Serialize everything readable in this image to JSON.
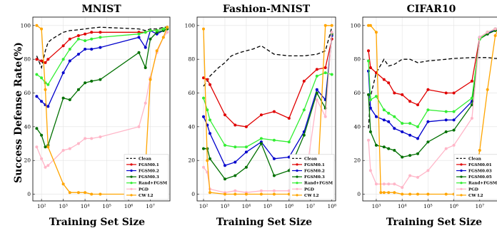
{
  "figure": {
    "shared_ylabel": "Success Defense Rate(%)",
    "shared_xlabel": "Training Set Size"
  },
  "chart_data": [
    {
      "type": "line",
      "title": "MNIST",
      "xlabel": "Training Set Size",
      "ylabel": "Success Defense Rate(%)",
      "xscale": "log",
      "xlim": [
        40,
        80000000
      ],
      "ylim": [
        -4,
        105
      ],
      "x_ticks": [
        100,
        1000,
        10000,
        100000,
        1000000,
        10000000
      ],
      "x_tick_labels": [
        "10²",
        "10³",
        "10⁴",
        "10⁵",
        "10⁶",
        "10⁷"
      ],
      "y_ticks": [
        0,
        20,
        40,
        60,
        80,
        100
      ],
      "grid": true,
      "legend_position": "bottom-right",
      "series": [
        {
          "name": "Clean",
          "color": "#000000",
          "dash": "5,3",
          "marker": "none",
          "x": [
            60,
            100,
            150,
            200,
            300,
            1000,
            2000,
            5000,
            10000,
            20000,
            50000,
            3000000,
            6000000,
            10000000,
            20000000,
            30000000,
            40000000,
            60000000
          ],
          "y": [
            82,
            75,
            85,
            90,
            92,
            96,
            97,
            97.5,
            98,
            98.5,
            99,
            98,
            97,
            98,
            98,
            98.5,
            99,
            99
          ]
        },
        {
          "name": "FGSM0.1",
          "color": "#e00000",
          "dash": "",
          "marker": "circle",
          "x": [
            60,
            100,
            150,
            200,
            1000,
            2000,
            5000,
            10000,
            20000,
            50000,
            3000000,
            6000000,
            10000000,
            20000000,
            40000000,
            60000000
          ],
          "y": [
            80,
            79,
            78,
            80,
            88,
            92,
            94,
            95,
            96,
            96,
            96,
            96,
            97,
            97,
            98,
            99
          ]
        },
        {
          "name": "FGSM0.2",
          "color": "#0000cc",
          "dash": "",
          "marker": "circle",
          "x": [
            60,
            100,
            150,
            200,
            1000,
            2000,
            5000,
            10000,
            20000,
            50000,
            3000000,
            6000000,
            10000000,
            20000000,
            40000000,
            60000000
          ],
          "y": [
            58,
            55,
            53,
            52,
            72,
            79,
            83,
            86,
            86,
            87,
            93,
            87,
            97,
            95,
            97,
            98
          ]
        },
        {
          "name": "FGSM0.3",
          "color": "#007000",
          "dash": "",
          "marker": "circle",
          "x": [
            60,
            100,
            150,
            200,
            1000,
            2000,
            5000,
            10000,
            20000,
            50000,
            3000000,
            6000000,
            10000000,
            20000000,
            40000000,
            60000000
          ],
          "y": [
            39,
            35,
            28,
            29,
            57,
            56,
            62,
            66,
            67,
            68,
            84,
            75,
            92,
            96,
            97,
            98
          ]
        },
        {
          "name": "Rand+FGSM",
          "color": "#33ee33",
          "dash": "",
          "marker": "circle",
          "x": [
            60,
            100,
            150,
            200,
            1000,
            2000,
            5000,
            10000,
            20000,
            50000,
            3000000,
            6000000,
            10000000,
            20000000,
            40000000,
            60000000
          ],
          "y": [
            71,
            69,
            66,
            65,
            80,
            86,
            92,
            91,
            92,
            93,
            95,
            96,
            97,
            97,
            98,
            99
          ]
        },
        {
          "name": "PGD",
          "color": "#ffb6c8",
          "dash": "",
          "marker": "circle",
          "x": [
            60,
            100,
            150,
            200,
            1000,
            2000,
            5000,
            10000,
            20000,
            50000,
            3000000,
            6000000,
            10000000,
            20000000,
            40000000,
            60000000
          ],
          "y": [
            28,
            21,
            16,
            17,
            26,
            27,
            30,
            33,
            33,
            34,
            40,
            54,
            69,
            84,
            93,
            96
          ]
        },
        {
          "name": "CW L2",
          "color": "#ffa500",
          "dash": "",
          "marker": "circle",
          "x": [
            60,
            100,
            150,
            200,
            1000,
            2000,
            5000,
            10000,
            20000,
            50000,
            3000000,
            6000000,
            10000000,
            20000000,
            40000000,
            60000000
          ],
          "y": [
            100,
            98,
            62,
            28,
            6,
            1,
            1,
            1,
            0,
            0,
            0,
            16,
            68,
            85,
            93,
            99
          ]
        }
      ]
    },
    {
      "type": "line",
      "title": "Fashion-MNIST",
      "xlabel": "Training Set Size",
      "ylabel": "Success Defense Rate(%)",
      "xscale": "log",
      "xlim": [
        50,
        150000000
      ],
      "ylim": [
        -4,
        105
      ],
      "x_ticks": [
        100,
        1000,
        10000,
        100000,
        1000000,
        10000000,
        100000000
      ],
      "x_tick_labels": [
        "10²",
        "10³",
        "10⁴",
        "10⁵",
        "10⁶",
        "10⁷",
        "10⁸"
      ],
      "y_ticks": [
        0,
        20,
        40,
        60,
        80,
        100
      ],
      "grid": true,
      "legend_position": "bottom-right",
      "series": [
        {
          "name": "Clean",
          "color": "#000000",
          "dash": "5,3",
          "marker": "none",
          "x": [
            100,
            150,
            200,
            500,
            1000,
            2000,
            5000,
            10000,
            20000,
            50000,
            200000,
            1000000,
            5000000,
            20000000,
            50000000,
            100000000
          ],
          "y": [
            64,
            67,
            70,
            75,
            78,
            82,
            84,
            85,
            86,
            88,
            83,
            82,
            82,
            83,
            85,
            99
          ]
        },
        {
          "name": "FGSM0.1",
          "color": "#e00000",
          "dash": "",
          "marker": "circle",
          "x": [
            100,
            150,
            200,
            1000,
            3000,
            10000,
            50000,
            200000,
            1000000,
            5000000,
            20000000,
            50000000,
            100000000
          ],
          "y": [
            69,
            68,
            65,
            47,
            41,
            40,
            47,
            49,
            45,
            67,
            74,
            75,
            92
          ]
        },
        {
          "name": "FGSM0.2",
          "color": "#0000cc",
          "dash": "",
          "marker": "circle",
          "x": [
            100,
            150,
            200,
            1000,
            3000,
            10000,
            50000,
            200000,
            1000000,
            5000000,
            20000000,
            50000000,
            100000000
          ],
          "y": [
            46,
            41,
            36,
            17,
            19,
            25,
            31,
            21,
            22,
            37,
            62,
            56,
            94
          ]
        },
        {
          "name": "FGSM0.3",
          "color": "#007000",
          "dash": "",
          "marker": "circle",
          "x": [
            100,
            150,
            200,
            1000,
            3000,
            10000,
            50000,
            200000,
            1000000,
            5000000,
            20000000,
            50000000,
            100000000
          ],
          "y": [
            27,
            27,
            21,
            9,
            11,
            16,
            30,
            11,
            14,
            35,
            60,
            51,
            95
          ]
        },
        {
          "name": "Rand+FGSM",
          "color": "#33ee33",
          "dash": "",
          "marker": "circle",
          "x": [
            100,
            150,
            200,
            1000,
            3000,
            10000,
            50000,
            200000,
            1000000,
            5000000,
            20000000,
            50000000,
            100000000
          ],
          "y": [
            57,
            50,
            44,
            29,
            28,
            28,
            33,
            32,
            31,
            50,
            70,
            72,
            71
          ]
        },
        {
          "name": "PGD",
          "color": "#ffb6c8",
          "dash": "",
          "marker": "circle",
          "x": [
            100,
            150,
            200,
            1000,
            3000,
            10000,
            50000,
            200000,
            1000000,
            5000000,
            20000000,
            50000000,
            100000000
          ],
          "y": [
            16,
            13,
            3,
            1,
            2,
            1,
            2,
            2,
            2,
            3,
            56,
            46,
            96
          ]
        },
        {
          "name": "CW L2",
          "color": "#ffa500",
          "dash": "",
          "marker": "circle",
          "x": [
            100,
            150,
            200,
            1000,
            3000,
            10000,
            50000,
            200000,
            1000000,
            5000000,
            20000000,
            50000000,
            100000000
          ],
          "y": [
            98,
            20,
            1,
            0,
            0,
            0,
            0,
            0,
            0,
            0,
            0,
            100,
            100
          ]
        }
      ]
    },
    {
      "type": "line",
      "title": "CIFAR10",
      "xlabel": "Training Set Size",
      "ylabel": "Success Defense Rate(%)",
      "xscale": "log",
      "xlim": [
        300,
        60000000
      ],
      "ylim": [
        -4,
        105
      ],
      "x_ticks": [
        1000,
        10000,
        100000,
        1000000,
        10000000
      ],
      "x_tick_labels": [
        "10³",
        "10⁴",
        "10⁵",
        "10⁶",
        "10⁷"
      ],
      "y_ticks": [
        0,
        20,
        40,
        60,
        80,
        100
      ],
      "grid": true,
      "legend_position": "bottom-right",
      "series": [
        {
          "name": "Clean",
          "color": "#000000",
          "dash": "5,3",
          "marker": "none",
          "x": [
            500,
            600,
            1000,
            2000,
            3000,
            5000,
            10000,
            20000,
            40000,
            100000,
            500000,
            1000000,
            5000000,
            10000000,
            20000000,
            40000000,
            60000000
          ],
          "y": [
            39,
            58,
            72,
            80,
            76,
            77,
            80,
            80,
            78,
            79,
            80,
            80.5,
            81,
            81,
            81,
            80.5,
            80.5
          ]
        },
        {
          "name": "FGSM0.01",
          "color": "#e00000",
          "dash": "",
          "marker": "circle",
          "x": [
            500,
            600,
            1000,
            2000,
            3000,
            5000,
            10000,
            20000,
            40000,
            100000,
            500000,
            1000000,
            5000000,
            10000000,
            20000000,
            40000000,
            60000000
          ],
          "y": [
            85,
            75,
            72,
            68,
            66,
            60,
            59,
            55,
            53,
            62,
            60,
            60,
            67,
            93,
            96,
            98,
            99
          ]
        },
        {
          "name": "FGSM0.03",
          "color": "#0000cc",
          "dash": "",
          "marker": "circle",
          "x": [
            500,
            600,
            1000,
            2000,
            3000,
            5000,
            10000,
            20000,
            40000,
            100000,
            500000,
            1000000,
            5000000,
            10000000,
            20000000,
            40000000,
            60000000
          ],
          "y": [
            73,
            51,
            46,
            44,
            43,
            39,
            37,
            35,
            33,
            43,
            44,
            44,
            55,
            93,
            95,
            98,
            99
          ]
        },
        {
          "name": "FGSM0.05",
          "color": "#007000",
          "dash": "",
          "marker": "circle",
          "x": [
            500,
            600,
            1000,
            2000,
            3000,
            5000,
            10000,
            20000,
            40000,
            100000,
            500000,
            1000000,
            5000000,
            10000000,
            20000000,
            40000000,
            60000000
          ],
          "y": [
            59,
            37,
            29,
            28,
            27,
            26,
            22,
            23,
            24,
            31,
            37,
            38,
            53,
            92,
            95,
            97,
            98
          ]
        },
        {
          "name": "Rand+FGSM",
          "color": "#33ee33",
          "dash": "",
          "marker": "circle",
          "x": [
            500,
            600,
            1000,
            2000,
            3000,
            5000,
            10000,
            20000,
            40000,
            100000,
            500000,
            1000000,
            5000000,
            10000000,
            20000000,
            40000000,
            60000000
          ],
          "y": [
            79,
            56,
            58,
            50,
            48,
            46,
            42,
            42,
            40,
            50,
            49,
            49,
            57,
            92,
            96,
            98,
            99
          ]
        },
        {
          "name": "PGD",
          "color": "#ffb6c8",
          "dash": "",
          "marker": "circle",
          "x": [
            500,
            600,
            1000,
            2000,
            3000,
            5000,
            10000,
            20000,
            40000,
            100000,
            500000,
            1000000,
            5000000,
            10000000,
            20000000,
            40000000,
            60000000
          ],
          "y": [
            32,
            14,
            6,
            6,
            6,
            6,
            4,
            11,
            10,
            14,
            27,
            29,
            45,
            93,
            96,
            98,
            99
          ]
        },
        {
          "name": "CW L2",
          "color": "#ffa500",
          "dash": "",
          "marker": "circle",
          "x": [
            500,
            600,
            1000,
            1500,
            2000,
            3000,
            5000,
            10000,
            20000,
            40000,
            100000,
            500000,
            1000000,
            5000000,
            10000000,
            20000000,
            40000000,
            60000000
          ],
          "y": [
            100,
            100,
            96,
            1,
            1,
            1,
            1,
            0,
            0,
            0,
            0,
            0,
            0,
            0,
            26,
            62,
            94,
            100
          ]
        }
      ]
    }
  ]
}
